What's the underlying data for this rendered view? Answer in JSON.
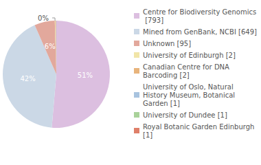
{
  "chart_data": {
    "type": "pie",
    "categories": [
      "Centre for Biodiversity Genomics [793]",
      "Mined from GenBank, NCBI [649]",
      "Unknown [95]",
      "University of Edinburgh [2]",
      "Canadian Centre for DNA Barcoding [2]",
      "University of Oslo, Natural History Museum, Botanical Garden [1]",
      "University of Dundee [1]",
      "Royal Botanic Garden Edinburgh [1]"
    ],
    "values": [
      793,
      649,
      95,
      2,
      2,
      1,
      1,
      1
    ],
    "value_labels": [
      "51%",
      "42%",
      "6%",
      "0%",
      null,
      null,
      null,
      null
    ],
    "colors": [
      "#dcbfe0",
      "#cbd8e6",
      "#e2a89c",
      "#f1e5a8",
      "#e8b47c",
      "#a8c3df",
      "#a9d29a",
      "#df7f69"
    ],
    "data_labels": true,
    "legend": "right"
  }
}
